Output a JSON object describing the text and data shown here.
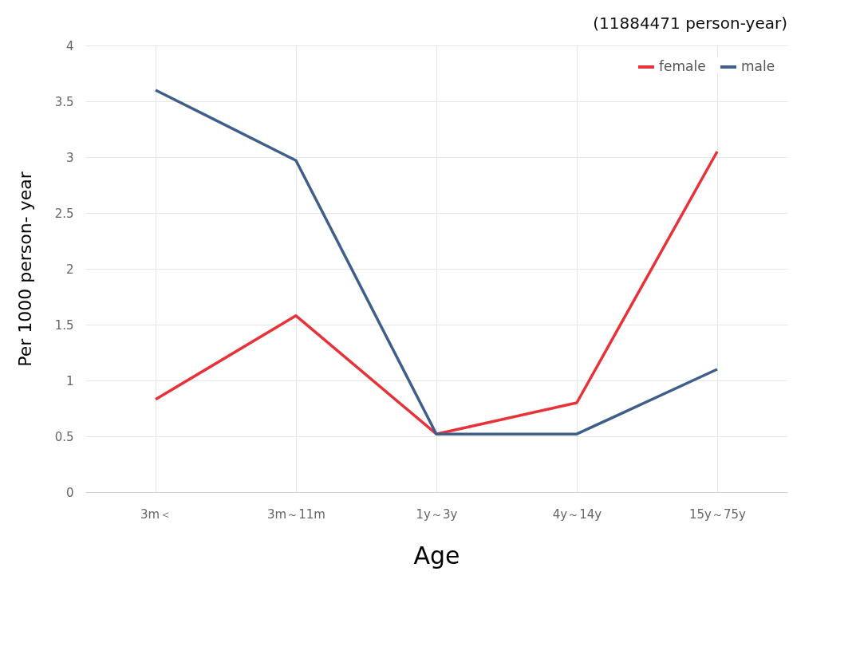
{
  "chart_data": {
    "type": "line",
    "xlabel": "Age",
    "ylabel": "Per 1000 person- year",
    "annotations": [
      "(11884471 person-year)"
    ],
    "categories": [
      "3m＜",
      "3m～11m",
      "1y～3y",
      "4y～14y",
      "15y～75y"
    ],
    "series": [
      {
        "name": "female",
        "color": "#e8323a",
        "values": [
          0.83,
          1.58,
          0.52,
          0.8,
          3.05
        ]
      },
      {
        "name": "male",
        "color": "#3f5f8a",
        "values": [
          3.6,
          2.97,
          0.52,
          0.52,
          1.1
        ]
      }
    ],
    "ylim": [
      0,
      4
    ],
    "yticks": [
      0,
      0.5,
      1,
      1.5,
      2,
      2.5,
      3,
      3.5,
      4
    ],
    "grid": true,
    "legend": "top right",
    "marker": "none",
    "line_style": "solid"
  }
}
